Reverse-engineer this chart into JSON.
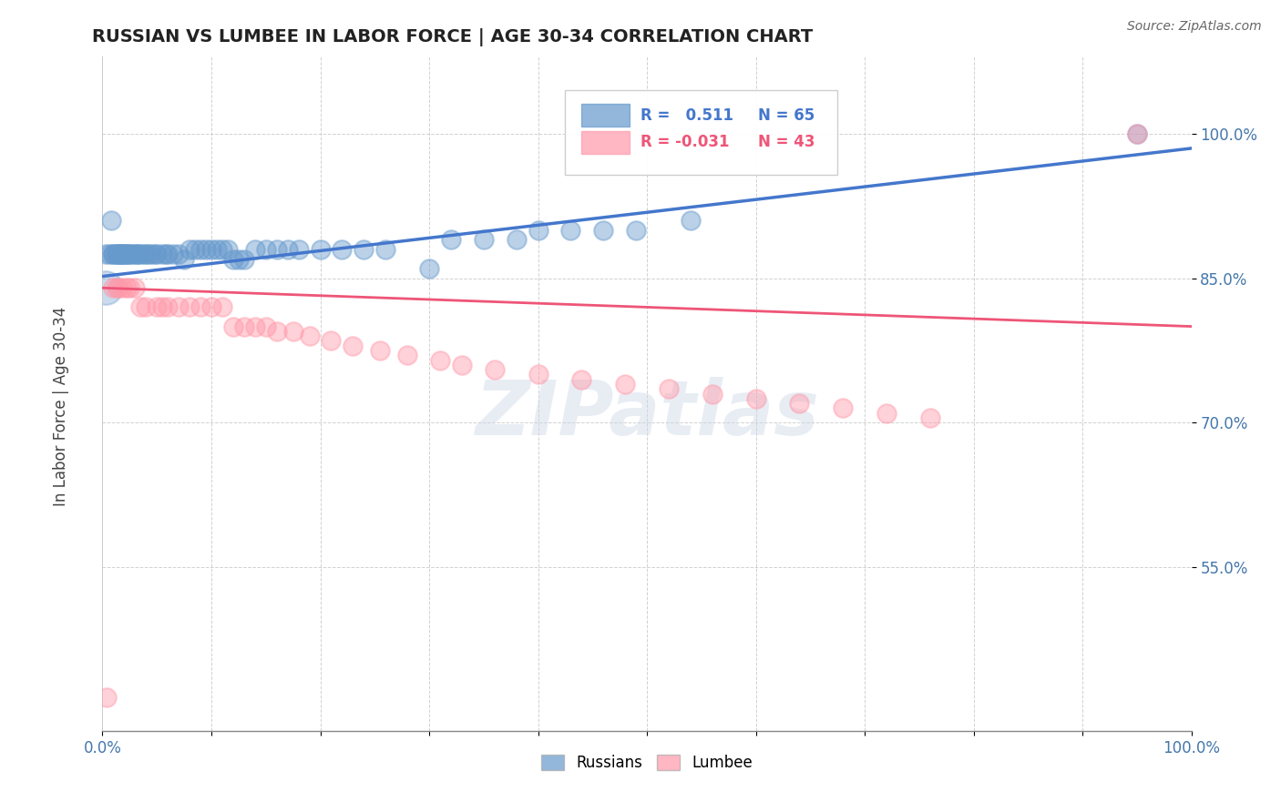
{
  "title": "RUSSIAN VS LUMBEE IN LABOR FORCE | AGE 30-34 CORRELATION CHART",
  "source": "Source: ZipAtlas.com",
  "ylabel": "In Labor Force | Age 30-34",
  "xlim": [
    0.0,
    1.0
  ],
  "ylim": [
    0.38,
    1.08
  ],
  "xtick_pos": [
    0.0,
    0.1,
    0.2,
    0.3,
    0.4,
    0.5,
    0.6,
    0.7,
    0.8,
    0.9,
    1.0
  ],
  "xticklabels": [
    "0.0%",
    "",
    "",
    "",
    "",
    "",
    "",
    "",
    "",
    "",
    "100.0%"
  ],
  "ytick_positions": [
    0.55,
    0.7,
    0.85,
    1.0
  ],
  "ytick_labels": [
    "55.0%",
    "70.0%",
    "85.0%",
    "100.0%"
  ],
  "russian_color": "#6699cc",
  "lumbee_color": "#ff99aa",
  "watermark": "ZIPatlas",
  "russian_x": [
    0.003,
    0.006,
    0.008,
    0.01,
    0.01,
    0.012,
    0.014,
    0.015,
    0.015,
    0.016,
    0.018,
    0.018,
    0.02,
    0.02,
    0.022,
    0.022,
    0.025,
    0.025,
    0.028,
    0.03,
    0.032,
    0.032,
    0.035,
    0.038,
    0.04,
    0.042,
    0.045,
    0.048,
    0.05,
    0.055,
    0.058,
    0.06,
    0.065,
    0.07,
    0.075,
    0.08,
    0.085,
    0.09,
    0.095,
    0.1,
    0.105,
    0.11,
    0.115,
    0.12,
    0.125,
    0.13,
    0.14,
    0.15,
    0.16,
    0.17,
    0.18,
    0.2,
    0.22,
    0.24,
    0.26,
    0.3,
    0.32,
    0.35,
    0.38,
    0.4,
    0.43,
    0.46,
    0.49,
    0.54,
    0.95
  ],
  "russian_y": [
    0.875,
    0.875,
    0.91,
    0.875,
    0.875,
    0.875,
    0.875,
    0.875,
    0.875,
    0.875,
    0.875,
    0.875,
    0.875,
    0.875,
    0.875,
    0.875,
    0.875,
    0.875,
    0.875,
    0.875,
    0.875,
    0.875,
    0.875,
    0.875,
    0.875,
    0.875,
    0.875,
    0.875,
    0.875,
    0.875,
    0.875,
    0.875,
    0.875,
    0.875,
    0.87,
    0.88,
    0.88,
    0.88,
    0.88,
    0.88,
    0.88,
    0.88,
    0.88,
    0.87,
    0.87,
    0.87,
    0.88,
    0.88,
    0.88,
    0.88,
    0.88,
    0.88,
    0.88,
    0.88,
    0.88,
    0.86,
    0.89,
    0.89,
    0.89,
    0.9,
    0.9,
    0.9,
    0.9,
    0.91,
    1.0
  ],
  "lumbee_x": [
    0.004,
    0.01,
    0.013,
    0.015,
    0.018,
    0.022,
    0.025,
    0.03,
    0.035,
    0.04,
    0.05,
    0.055,
    0.06,
    0.07,
    0.08,
    0.09,
    0.1,
    0.11,
    0.12,
    0.13,
    0.14,
    0.15,
    0.16,
    0.175,
    0.19,
    0.21,
    0.23,
    0.255,
    0.28,
    0.31,
    0.33,
    0.36,
    0.4,
    0.44,
    0.48,
    0.52,
    0.56,
    0.6,
    0.64,
    0.68,
    0.72,
    0.76,
    0.95
  ],
  "lumbee_y": [
    0.415,
    0.84,
    0.84,
    0.84,
    0.84,
    0.84,
    0.84,
    0.84,
    0.82,
    0.82,
    0.82,
    0.82,
    0.82,
    0.82,
    0.82,
    0.82,
    0.82,
    0.82,
    0.8,
    0.8,
    0.8,
    0.8,
    0.795,
    0.795,
    0.79,
    0.785,
    0.78,
    0.775,
    0.77,
    0.765,
    0.76,
    0.755,
    0.75,
    0.745,
    0.74,
    0.735,
    0.73,
    0.725,
    0.72,
    0.715,
    0.71,
    0.705,
    1.0
  ]
}
